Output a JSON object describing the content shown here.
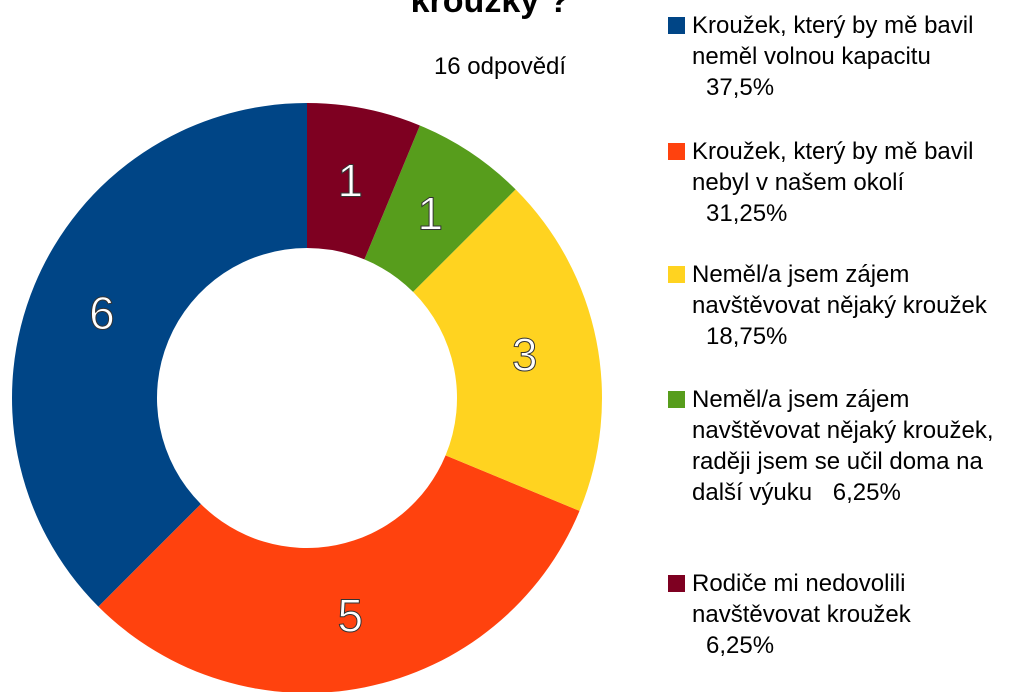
{
  "chart_data": {
    "type": "donut",
    "title": "kroužky ?",
    "subtitle": "16 odpovědí",
    "categories": [
      "Kroužek, který by mě bavil neměl volnou kapacitu",
      "Kroužek, který by mě bavil nebyl v našem okolí",
      "Neměl/a jsem zájem navštěvovat nějaký kroužek",
      "Neměl/a jsem zájem navštěvovat nějaký kroužek, raději jsem se učil doma na další výuku",
      "Rodiče mi nedovolili navštěvovat kroužek"
    ],
    "values": [
      6,
      5,
      3,
      1,
      1
    ],
    "percent_labels": [
      "37,5%",
      "31,25%",
      "18,75%",
      "6,25%",
      "6,25%"
    ],
    "colors": [
      "#004586",
      "#ff420e",
      "#ffd320",
      "#579d1c",
      "#7e0021"
    ]
  }
}
